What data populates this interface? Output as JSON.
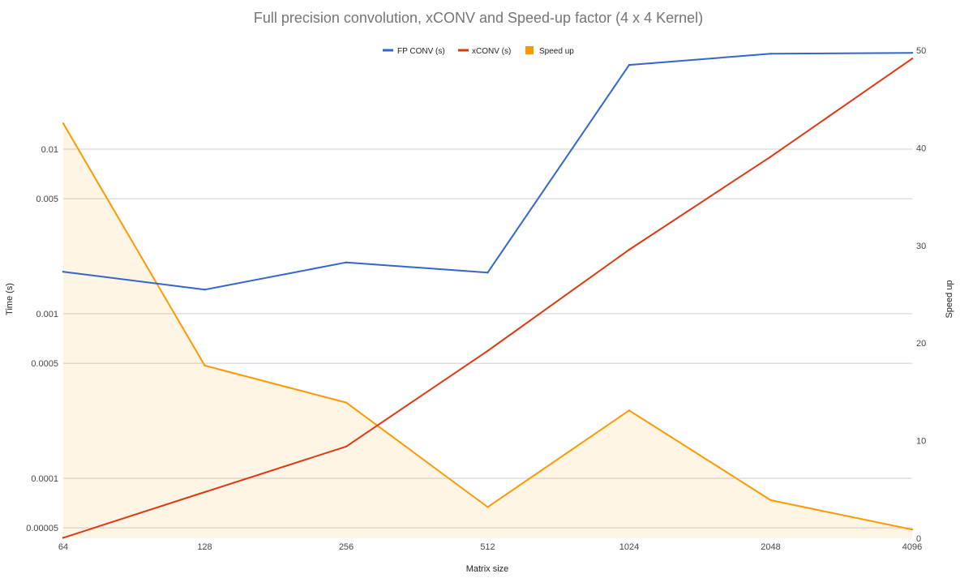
{
  "chart_data": {
    "type": "line",
    "title": "Full precision convolution, xCONV and Speed-up factor (4 x 4 Kernel)",
    "xlabel": "Matrix size",
    "ylabel_left": "Time (s)",
    "ylabel_right": "Speed up",
    "categories": [
      "64",
      "128",
      "256",
      "512",
      "1024",
      "2048",
      "4096"
    ],
    "left_axis": {
      "scale": "log",
      "ticks": [
        5e-05,
        0.0001,
        0.0005,
        0.001,
        0.005,
        0.01
      ],
      "tick_labels": [
        "0.00005",
        "0.0001",
        "0.0005",
        "0.001",
        "0.005",
        "0.01"
      ]
    },
    "right_axis": {
      "scale": "linear",
      "ylim": [
        0,
        50
      ],
      "ticks": [
        0,
        10,
        20,
        30,
        40,
        50
      ],
      "tick_labels": [
        "0",
        "10",
        "20",
        "30",
        "40",
        "50"
      ]
    },
    "legend_position": "top-center",
    "grid": true,
    "series": [
      {
        "name": "FP CONV (s)",
        "type": "line",
        "axis": "left",
        "color": "#3366cc",
        "values": [
          0.0018,
          0.0014,
          0.00205,
          0.00178,
          0.0325,
          0.038,
          0.0385
        ]
      },
      {
        "name": "xCONV (s)",
        "type": "line",
        "axis": "left",
        "color": "#dc3912",
        "values": [
          4.35e-05,
          8.25e-05,
          0.000156,
          0.000595,
          0.00245,
          0.009,
          0.0355
        ]
      },
      {
        "name": "Speed up",
        "type": "area",
        "axis": "right",
        "color": "#ff9900",
        "values": [
          42.5,
          17.7,
          13.9,
          3.2,
          13.1,
          3.9,
          0.9
        ]
      }
    ]
  }
}
